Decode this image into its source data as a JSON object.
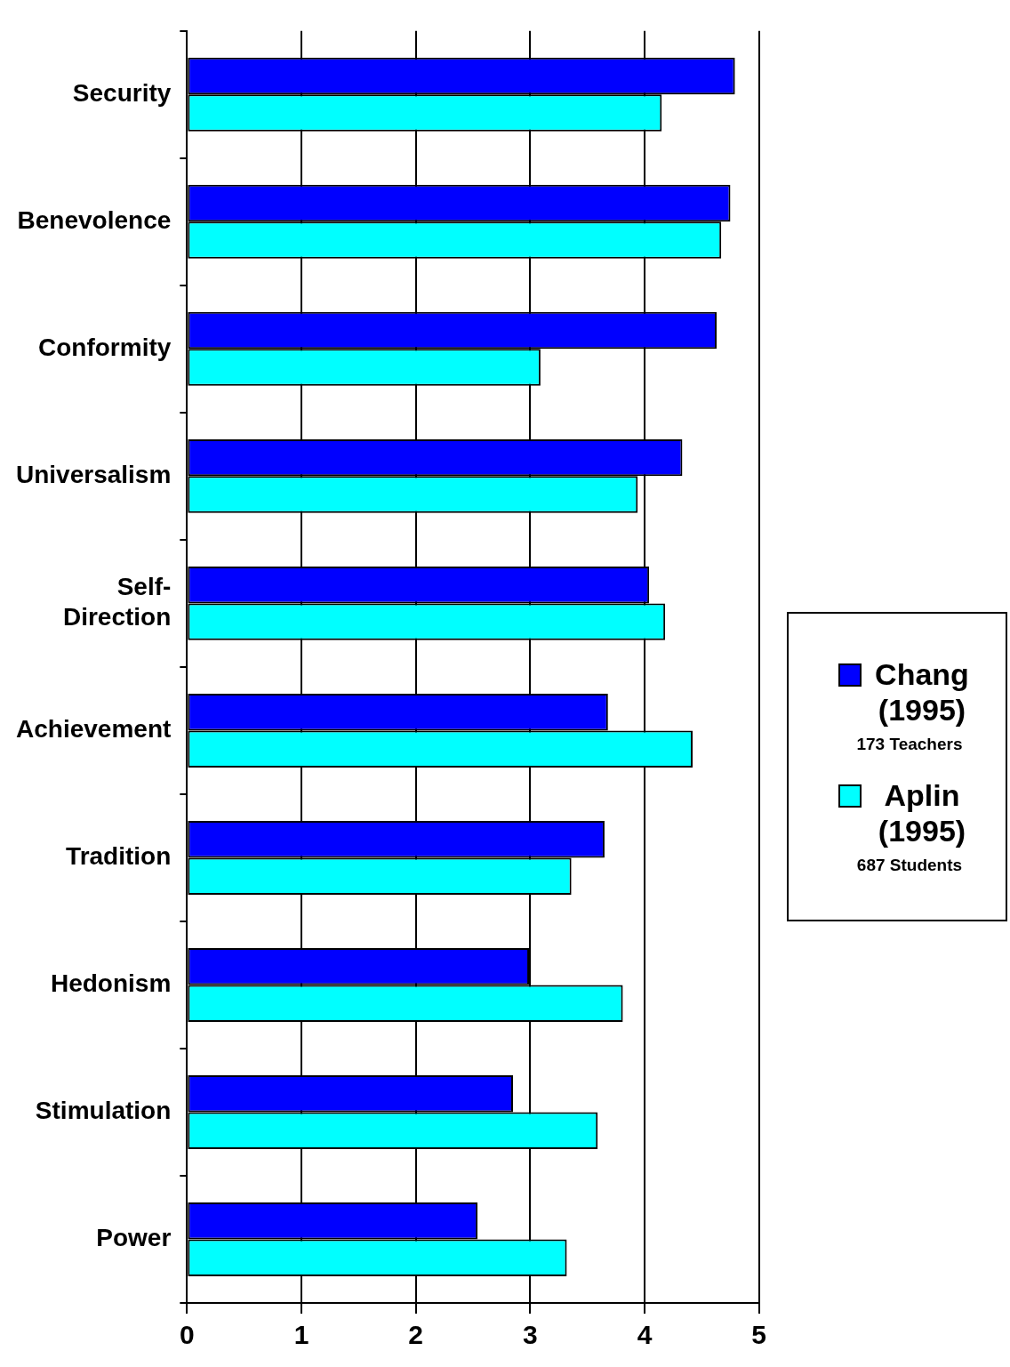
{
  "chart_data": {
    "type": "bar",
    "orientation": "horizontal",
    "categories": [
      "Security",
      "Benevolence",
      "Conformity",
      "Universalism",
      "Self-Direction",
      "Achievement",
      "Tradition",
      "Hedonism",
      "Stimulation",
      "Power"
    ],
    "series": [
      {
        "name": "Chang (1995)",
        "color": "#0000ff",
        "values": [
          4.79,
          4.75,
          4.63,
          4.33,
          4.04,
          3.68,
          3.65,
          2.99,
          2.85,
          2.54
        ]
      },
      {
        "name": "Aplin (1995)",
        "color": "#00ffff",
        "values": [
          4.15,
          4.67,
          3.09,
          3.94,
          4.18,
          4.42,
          3.36,
          3.81,
          3.59,
          3.32
        ]
      }
    ],
    "xlim": [
      0,
      5
    ],
    "xticks": [
      0,
      1,
      2,
      3,
      4,
      5
    ],
    "grid": "x",
    "legend": "right",
    "annotations": [
      "173 Teachers",
      "687 Students"
    ]
  }
}
